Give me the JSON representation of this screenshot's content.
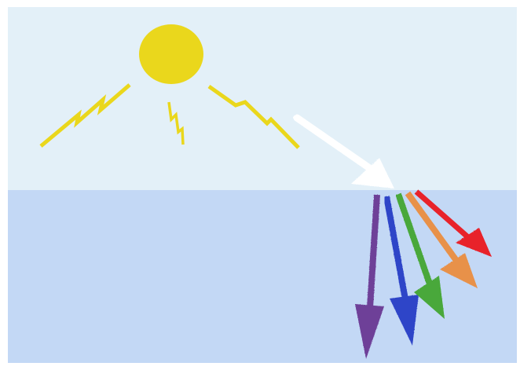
{
  "scene": {
    "colors": {
      "air": "#e3f0f8",
      "water": "#c3d8f5",
      "sun": "#ead71c",
      "incident_ray": "#ffffff",
      "red": "#e8202a",
      "orange": "#e8914a",
      "green": "#4aa83a",
      "blue": "#2e45c8",
      "violet": "#6e3f98"
    },
    "elements": {
      "sun": "sun",
      "sun_rays": [
        "sun-ray-left",
        "sun-ray-center",
        "sun-ray-right"
      ],
      "incident": "incident-light-ray",
      "refracted": [
        "violet-ray",
        "blue-ray",
        "green-ray",
        "orange-ray",
        "red-ray"
      ]
    }
  }
}
